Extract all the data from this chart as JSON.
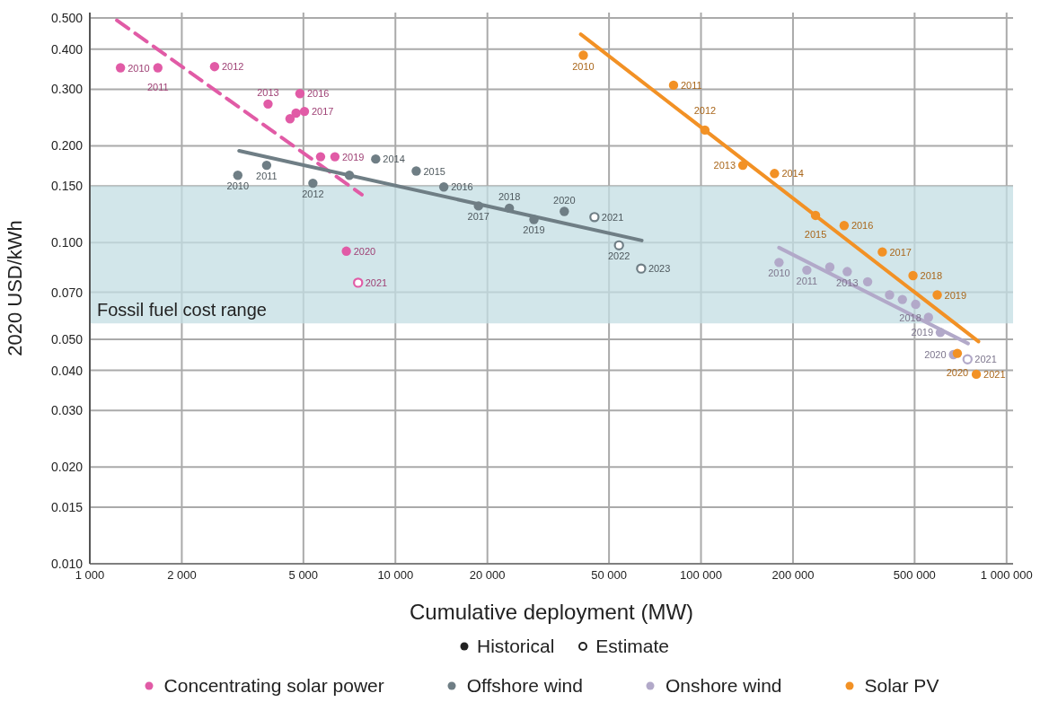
{
  "chart_data": {
    "type": "scatter",
    "xlabel": "Cumulative deployment (MW)",
    "ylabel": "2020 USD/kWh",
    "log": "xy",
    "grid": true,
    "legend": "bottom",
    "marker": "circle",
    "xlim": [
      1000,
      1050000
    ],
    "xticks": [
      {
        "value": 1000,
        "label": "1 000"
      },
      {
        "value": 2000,
        "label": "2 000"
      },
      {
        "value": 5000,
        "label": "5 000"
      },
      {
        "value": 10000,
        "label": "10 000"
      },
      {
        "value": 20000,
        "label": "20 000"
      },
      {
        "value": 50000,
        "label": "50 000"
      },
      {
        "value": 100000,
        "label": "100 000"
      },
      {
        "value": 200000,
        "label": "200 000"
      },
      {
        "value": 500000,
        "label": "500 000"
      },
      {
        "value": 1000000,
        "label": "1 000 000"
      }
    ],
    "ylim": [
      0.01,
      0.52
    ],
    "yticks": [
      {
        "value": 0.01,
        "label": "0.010"
      },
      {
        "value": 0.015,
        "label": "0.015"
      },
      {
        "value": 0.02,
        "label": "0.020"
      },
      {
        "value": 0.03,
        "label": "0.030"
      },
      {
        "value": 0.04,
        "label": "0.040"
      },
      {
        "value": 0.05,
        "label": "0.050"
      },
      {
        "value": 0.07,
        "label": "0.070"
      },
      {
        "value": 0.1,
        "label": "0.100"
      },
      {
        "value": 0.15,
        "label": "0.150"
      },
      {
        "value": 0.2,
        "label": "0.200"
      },
      {
        "value": 0.3,
        "label": "0.300"
      },
      {
        "value": 0.4,
        "label": "0.400"
      },
      {
        "value": 0.5,
        "label": "0.500"
      }
    ],
    "bands": [
      {
        "axis": "y",
        "from": 0.056,
        "to": 0.15,
        "label": "Fossil fuel cost range",
        "color": "#c3dde3"
      }
    ],
    "annotations": [
      "Historical",
      "Estimate",
      {
        "text": "2010",
        "x": 1260,
        "y": 0.35
      },
      {
        "text": "2011",
        "x": 1670,
        "y": 0.35
      },
      {
        "text": "2012",
        "x": 2560,
        "y": 0.353
      },
      {
        "text": "2013",
        "x": 3830,
        "y": 0.27
      },
      {
        "text": "2016",
        "x": 4870,
        "y": 0.291
      },
      {
        "text": "2017",
        "x": 5040,
        "y": 0.256
      },
      {
        "text": "2019",
        "x": 6340,
        "y": 0.185
      },
      {
        "text": "2020",
        "x": 6910,
        "y": 0.094
      },
      {
        "text": "2021",
        "x": 7550,
        "y": 0.075
      },
      {
        "text": "2010",
        "x": 3050,
        "y": 0.162
      },
      {
        "text": "2011",
        "x": 3790,
        "y": 0.174
      },
      {
        "text": "2012",
        "x": 5370,
        "y": 0.153
      },
      {
        "text": "2014",
        "x": 8620,
        "y": 0.182
      },
      {
        "text": "2015",
        "x": 11700,
        "y": 0.167
      },
      {
        "text": "2016",
        "x": 14400,
        "y": 0.149
      },
      {
        "text": "2017",
        "x": 18700,
        "y": 0.13
      },
      {
        "text": "2018",
        "x": 23600,
        "y": 0.128
      },
      {
        "text": "2019",
        "x": 28400,
        "y": 0.118
      },
      {
        "text": "2020",
        "x": 35700,
        "y": 0.125
      },
      {
        "text": "2021",
        "x": 44800,
        "y": 0.12
      },
      {
        "text": "2022",
        "x": 53900,
        "y": 0.098
      },
      {
        "text": "2023",
        "x": 63700,
        "y": 0.083
      },
      {
        "text": "2010",
        "x": 180000,
        "y": 0.0867
      },
      {
        "text": "2011",
        "x": 222000,
        "y": 0.0821
      },
      {
        "text": "2013",
        "x": 301000,
        "y": 0.0812
      },
      {
        "text": "2018",
        "x": 555000,
        "y": 0.0585
      },
      {
        "text": "2019",
        "x": 607000,
        "y": 0.0525
      },
      {
        "text": "2020",
        "x": 670000,
        "y": 0.0448
      },
      {
        "text": "2021",
        "x": 745000,
        "y": 0.0433
      },
      {
        "text": "2010",
        "x": 41200,
        "y": 0.383
      },
      {
        "text": "2011",
        "x": 81300,
        "y": 0.309
      },
      {
        "text": "2012",
        "x": 103000,
        "y": 0.224
      },
      {
        "text": "2013",
        "x": 137000,
        "y": 0.174
      },
      {
        "text": "2014",
        "x": 174000,
        "y": 0.164
      },
      {
        "text": "2015",
        "x": 237000,
        "y": 0.1215
      },
      {
        "text": "2016",
        "x": 294000,
        "y": 0.113
      },
      {
        "text": "2017",
        "x": 392000,
        "y": 0.0935
      },
      {
        "text": "2018",
        "x": 494000,
        "y": 0.0789
      },
      {
        "text": "2019",
        "x": 593000,
        "y": 0.0687
      },
      {
        "text": "2020",
        "x": 690000,
        "y": 0.0452
      },
      {
        "text": "2021",
        "x": 796000,
        "y": 0.0389
      }
    ],
    "series": [
      {
        "name": "Concentrating solar power",
        "color": "#e15ba6",
        "x": [
          1260,
          1670,
          2560,
          3830,
          4520,
          4730,
          4870,
          5040,
          5690,
          6340,
          6910
        ],
        "values": [
          0.35,
          0.35,
          0.353,
          0.27,
          0.243,
          0.253,
          0.291,
          0.256,
          0.185,
          0.185,
          0.094
        ]
      },
      {
        "color": "#e15ba6",
        "x": [
          7550
        ],
        "values": [
          0.075
        ]
      },
      {
        "name": "Offshore wind",
        "color": "#6f7e85",
        "x": [
          3050,
          3790,
          5370,
          7070,
          8620,
          11700,
          14400,
          18700,
          23600,
          28400,
          35700
        ],
        "values": [
          0.162,
          0.174,
          0.153,
          0.162,
          0.182,
          0.167,
          0.149,
          0.13,
          0.128,
          0.118,
          0.125
        ]
      },
      {
        "color": "#6f7e85",
        "x": [
          44800,
          53900,
          63700
        ],
        "values": [
          0.12,
          0.098,
          0.083
        ]
      },
      {
        "name": "Onshore wind",
        "color": "#b2a9c9",
        "x": [
          180000,
          222000,
          264000,
          301000,
          351000,
          414000,
          456000,
          504000,
          555000,
          607000,
          670000
        ],
        "values": [
          0.0867,
          0.0821,
          0.0839,
          0.0812,
          0.0755,
          0.0687,
          0.0665,
          0.0642,
          0.0585,
          0.0525,
          0.0448
        ]
      },
      {
        "color": "#b2a9c9",
        "x": [
          745000
        ],
        "values": [
          0.0433
        ]
      },
      {
        "name": "Solar PV",
        "color": "#f29125",
        "x": [
          41200,
          81300,
          103000,
          137000,
          174000,
          237000,
          294000,
          392000,
          494000,
          593000,
          690000,
          796000
        ],
        "values": [
          0.383,
          0.309,
          0.224,
          0.174,
          0.164,
          0.1215,
          0.113,
          0.0935,
          0.0789,
          0.0687,
          0.0452,
          0.0389
        ]
      },
      {
        "color": "#e15ba6",
        "type": "line",
        "marker": "none",
        "line_style": "dashed",
        "x": [
          1226,
          7770
        ],
        "values": [
          0.492,
          0.141
        ]
      },
      {
        "color": "#6f7e85",
        "type": "line",
        "marker": "none",
        "line_style": "solid",
        "x": [
          3080,
          64000
        ],
        "values": [
          0.193,
          0.1015
        ]
      },
      {
        "color": "#b2a9c9",
        "type": "line",
        "marker": "none",
        "line_style": "solid",
        "x": [
          180000,
          748000
        ],
        "values": [
          0.0964,
          0.0485
        ]
      },
      {
        "color": "#f29125",
        "type": "line",
        "marker": "none",
        "line_style": "solid",
        "x": [
          40400,
          809000
        ],
        "values": [
          0.445,
          0.0492
        ]
      }
    ]
  }
}
